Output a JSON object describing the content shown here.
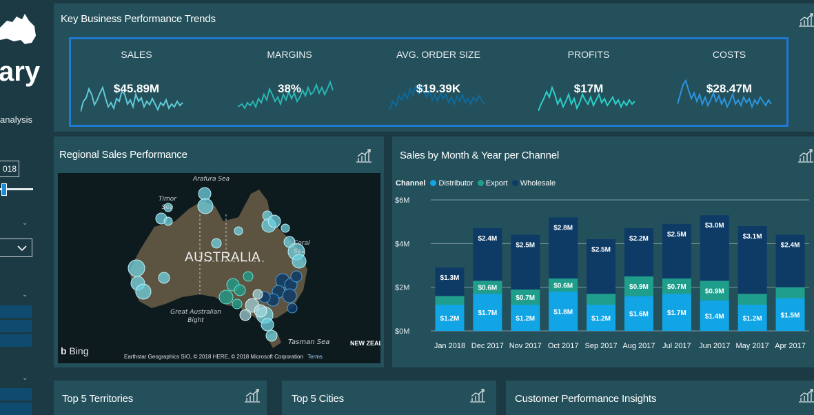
{
  "sidebar": {
    "title_fragment": "ary",
    "subtitle_fragment": "analysis",
    "year_fragment": "018"
  },
  "kpi_panel": {
    "title": "Key Business Performance Trends",
    "kpis": [
      {
        "label": "SALES",
        "value": "$45.89M",
        "color": "#5ecad6"
      },
      {
        "label": "MARGINS",
        "value": "38%",
        "color": "#29b5b2"
      },
      {
        "label": "AVG. ORDER SIZE",
        "value": "$19.39K",
        "color": "#0e6a9c"
      },
      {
        "label": "PROFITS",
        "value": "$17M",
        "color": "#2ad0c8"
      },
      {
        "label": "COSTS",
        "value": "$28.47M",
        "color": "#2b96e0"
      }
    ]
  },
  "map_panel": {
    "title": "Regional Sales Performance",
    "labels": {
      "country": "AUSTRALIA",
      "arafura": "Arafura Sea",
      "timor": "Timor Sea",
      "coral": "Coral Sea",
      "bight": "Great Australian Bight",
      "tasman": "Tasman Sea",
      "nz": "NEW ZEAL"
    },
    "bing": "Bing",
    "attribution": "Earthstar Geographics SIO, © 2018 HERE, © 2018 Microsoft Corporation",
    "terms": "Terms"
  },
  "chart_panel": {
    "title": "Sales by Month & Year per Channel",
    "legend_title": "Channel"
  },
  "chart_data": {
    "type": "bar",
    "stacked": true,
    "categories": [
      "Jan 2018",
      "Dec 2017",
      "Nov 2017",
      "Oct 2017",
      "Sep 2017",
      "Aug 2017",
      "Jul 2017",
      "Jun 2017",
      "May 2017",
      "Apr 2017"
    ],
    "series": [
      {
        "name": "Distributor",
        "color": "#12a5e6",
        "values": [
          1.2,
          1.7,
          1.2,
          1.8,
          1.2,
          1.6,
          1.7,
          1.4,
          1.2,
          1.5
        ],
        "labels": [
          "$1.2M",
          "$1.7M",
          "$1.2M",
          "$1.8M",
          "$1.2M",
          "$1.6M",
          "$1.7M",
          "$1.4M",
          "$1.2M",
          "$1.5M"
        ]
      },
      {
        "name": "Export",
        "color": "#1f9e8c",
        "values": [
          0.4,
          0.6,
          0.7,
          0.6,
          0.5,
          0.9,
          0.7,
          0.9,
          0.5,
          0.5
        ],
        "labels": [
          "",
          "$0.6M",
          "$0.7M",
          "$0.6M",
          "",
          "$0.9M",
          "$0.7M",
          "$0.9M",
          "",
          ""
        ]
      },
      {
        "name": "Wholesale",
        "color": "#0d3b66",
        "values": [
          1.3,
          2.4,
          2.5,
          2.8,
          2.5,
          2.2,
          2.5,
          3.0,
          3.1,
          2.4
        ],
        "labels": [
          "$1.3M",
          "$2.4M",
          "$2.5M",
          "$2.8M",
          "$2.5M",
          "$2.2M",
          "$2.5M",
          "$3.0M",
          "$3.1M",
          "$2.4M"
        ]
      }
    ],
    "yticks": [
      "$0M",
      "$2M",
      "$4M",
      "$6M"
    ],
    "ylim": [
      0,
      6
    ],
    "legend_position": "top-left"
  },
  "bottom_panels": [
    {
      "title": "Top 5 Territories"
    },
    {
      "title": "Top 5 Cities"
    },
    {
      "title": "Customer Performance Insights"
    }
  ]
}
